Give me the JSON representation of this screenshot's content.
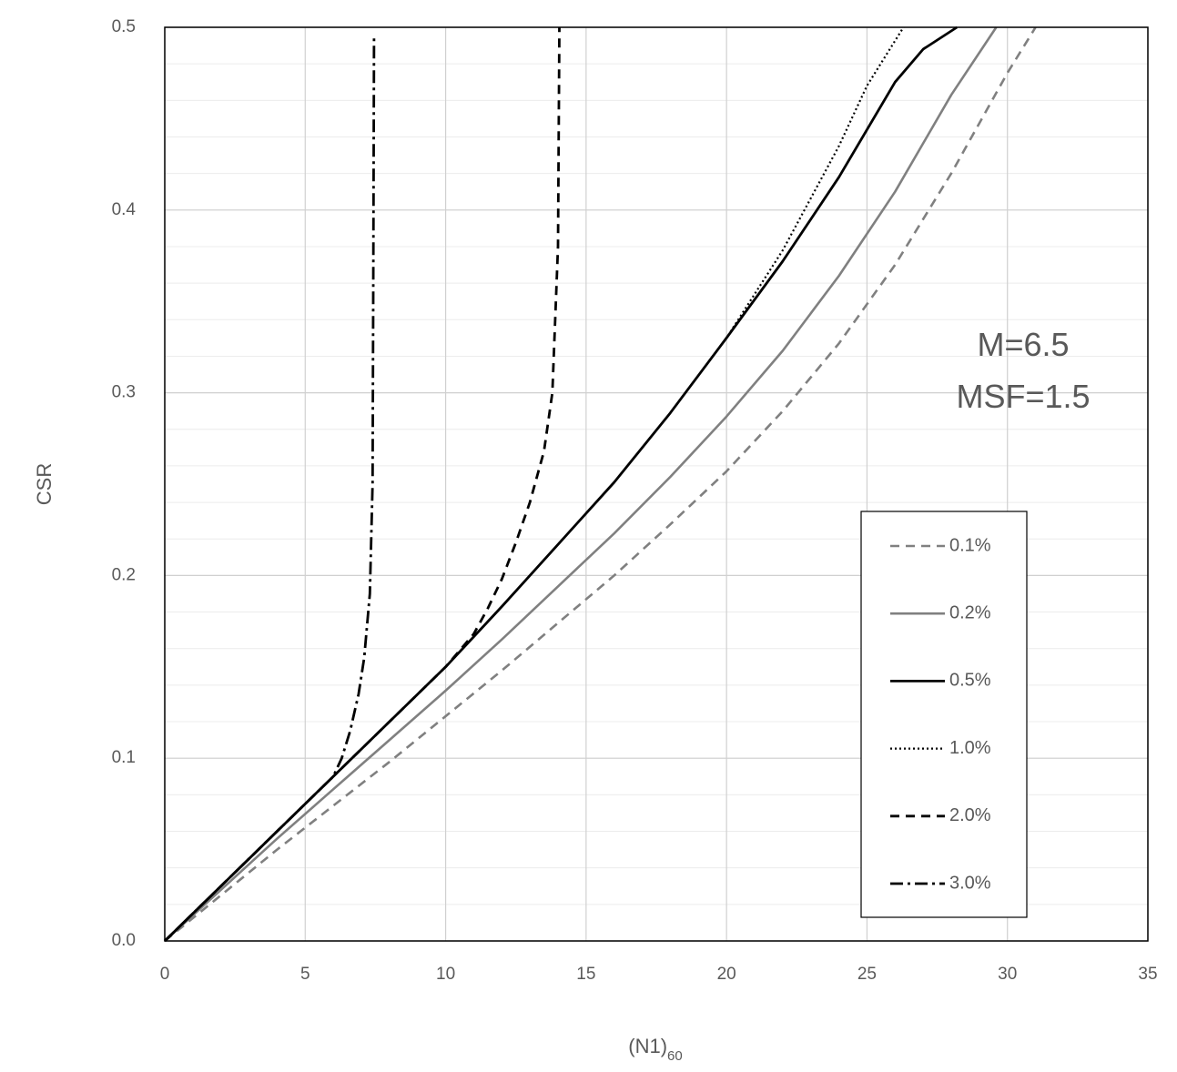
{
  "chart_data": {
    "type": "line",
    "title": "",
    "xlabel": "(N1)",
    "xlabel_subscript": "60",
    "ylabel": "CSR",
    "xlim": [
      0,
      35
    ],
    "ylim": [
      0,
      0.5
    ],
    "x_ticks": [
      0,
      5,
      10,
      15,
      20,
      25,
      30,
      35
    ],
    "x_tick_labels": [
      "0",
      "5",
      "10",
      "15",
      "20",
      "25",
      "30",
      "35"
    ],
    "y_ticks": [
      0,
      0.1,
      0.2,
      0.3,
      0.4,
      0.5
    ],
    "y_tick_labels": [
      "0.0",
      "0.1",
      "0.2",
      "0.3",
      "0.4",
      "0.5"
    ],
    "y_minor_step": 0.02,
    "grid": true,
    "legend_position": "lower-right",
    "annotations": [
      "M=6.5",
      "MSF=1.5"
    ],
    "series": [
      {
        "name": "0.1%",
        "color": "#808080",
        "style": "dashed",
        "x": [
          0,
          2,
          4,
          6,
          8,
          10,
          12,
          14,
          16,
          18,
          20,
          22,
          24,
          26,
          28,
          30,
          31
        ],
        "y": [
          0,
          0.025,
          0.05,
          0.074,
          0.098,
          0.123,
          0.148,
          0.174,
          0.2,
          0.228,
          0.257,
          0.29,
          0.327,
          0.37,
          0.42,
          0.475,
          0.5
        ]
      },
      {
        "name": "0.2%",
        "color": "#808080",
        "style": "solid",
        "x": [
          0,
          2,
          4,
          6,
          8,
          10,
          12,
          14,
          16,
          18,
          20,
          22,
          24,
          26,
          28,
          29.6
        ],
        "y": [
          0,
          0.028,
          0.056,
          0.083,
          0.11,
          0.137,
          0.165,
          0.194,
          0.223,
          0.254,
          0.287,
          0.323,
          0.364,
          0.41,
          0.463,
          0.5
        ]
      },
      {
        "name": "0.5%",
        "color": "#000000",
        "style": "solid",
        "x": [
          0,
          2,
          4,
          6,
          8,
          10,
          12,
          14,
          16,
          18,
          20,
          22,
          24,
          26,
          27,
          28.2
        ],
        "y": [
          0,
          0.03,
          0.06,
          0.09,
          0.12,
          0.15,
          0.183,
          0.217,
          0.251,
          0.289,
          0.33,
          0.372,
          0.418,
          0.47,
          0.488,
          0.5
        ]
      },
      {
        "name": "1.0%",
        "color": "#000000",
        "style": "dotted",
        "x": [
          0,
          2,
          4,
          6,
          8,
          10,
          12,
          14,
          16,
          18,
          20,
          22,
          24,
          25,
          26.3
        ],
        "y": [
          0,
          0.03,
          0.06,
          0.09,
          0.12,
          0.15,
          0.183,
          0.217,
          0.251,
          0.289,
          0.33,
          0.378,
          0.435,
          0.468,
          0.5
        ]
      },
      {
        "name": "2.0%",
        "color": "#000000",
        "style": "dashed",
        "x": [
          0,
          2,
          4,
          6,
          8,
          10,
          11,
          11.5,
          12,
          12.5,
          13,
          13.5,
          13.8,
          14.0,
          14.05
        ],
        "y": [
          0,
          0.03,
          0.06,
          0.09,
          0.12,
          0.15,
          0.168,
          0.182,
          0.198,
          0.218,
          0.24,
          0.268,
          0.3,
          0.38,
          0.5
        ]
      },
      {
        "name": "3.0%",
        "color": "#000000",
        "style": "dashdot",
        "x": [
          0,
          2,
          4,
          6,
          6.3,
          6.6,
          6.9,
          7.1,
          7.3,
          7.4,
          7.42,
          7.45
        ],
        "y": [
          0,
          0.03,
          0.06,
          0.09,
          0.1,
          0.115,
          0.135,
          0.155,
          0.19,
          0.25,
          0.35,
          0.495
        ]
      }
    ]
  }
}
